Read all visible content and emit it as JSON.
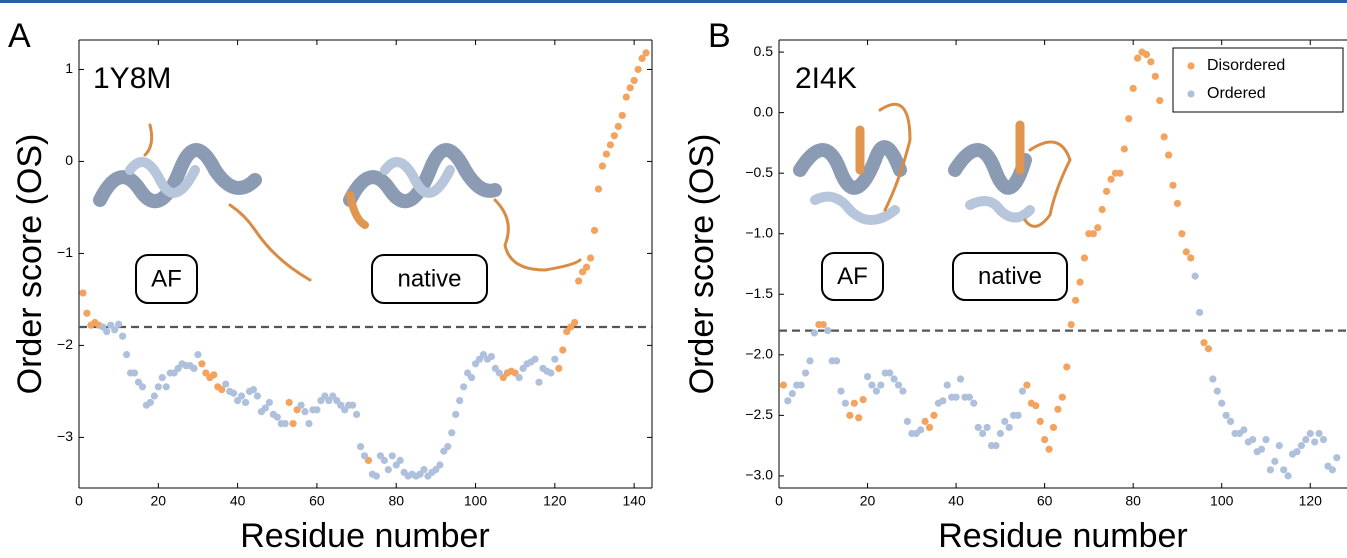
{
  "chart_data": [
    {
      "type": "scatter",
      "panel_label": "A",
      "title": "1Y8M",
      "xlabel": "Residue number",
      "ylabel": "Order score (OS)",
      "annotations": [
        "AF",
        "native"
      ],
      "threshold": -1.8,
      "xlim": [
        0,
        144.5
      ],
      "ylim": [
        -3.55,
        1.32
      ],
      "xticks": [
        0,
        20,
        40,
        60,
        80,
        100,
        120,
        140
      ],
      "yticks": [
        {
          "value": -3,
          "label": "−3"
        },
        {
          "value": -2,
          "label": "−2"
        },
        {
          "value": -1,
          "label": "−1"
        },
        0,
        1
      ],
      "series": [
        {
          "color": "#f4a35e",
          "x": [
            1,
            2,
            3,
            4,
            5,
            31,
            32,
            33,
            34,
            35,
            36,
            53,
            54,
            55,
            73,
            107,
            108,
            109,
            110,
            121,
            122,
            123,
            124,
            125,
            126,
            127,
            128,
            129,
            130,
            131,
            132,
            133,
            134,
            135,
            136,
            137,
            138,
            139,
            140,
            141,
            142,
            143
          ],
          "values": [
            -1.43,
            -1.65,
            -1.78,
            -1.75,
            -1.78,
            -2.2,
            -2.3,
            -2.35,
            -2.32,
            -2.45,
            -2.48,
            -2.62,
            -2.85,
            -2.7,
            -3.25,
            -2.35,
            -2.3,
            -2.28,
            -2.3,
            -2.25,
            -2.05,
            -1.85,
            -1.8,
            -1.75,
            -1.3,
            -1.2,
            -1.15,
            -1.05,
            -0.75,
            -0.3,
            -0.05,
            0.08,
            0.18,
            0.28,
            0.38,
            0.5,
            0.7,
            0.8,
            0.88,
            1.0,
            1.12,
            1.18
          ]
        },
        {
          "color": "#aec0dc",
          "x": [
            6,
            7,
            8,
            9,
            10,
            11,
            12,
            13,
            14,
            15,
            16,
            17,
            18,
            19,
            20,
            21,
            22,
            23,
            24,
            25,
            26,
            27,
            28,
            29,
            30,
            37,
            38,
            39,
            40,
            41,
            42,
            43,
            44,
            45,
            46,
            47,
            48,
            49,
            50,
            51,
            52,
            56,
            57,
            58,
            59,
            60,
            61,
            62,
            63,
            64,
            65,
            66,
            67,
            68,
            69,
            70,
            71,
            72,
            74,
            75,
            76,
            77,
            78,
            79,
            80,
            81,
            82,
            83,
            84,
            85,
            86,
            87,
            88,
            89,
            90,
            91,
            92,
            93,
            94,
            95,
            96,
            97,
            98,
            99,
            100,
            101,
            102,
            103,
            104,
            105,
            106,
            111,
            112,
            113,
            114,
            115,
            116,
            117,
            118,
            119,
            120
          ],
          "values": [
            -1.8,
            -1.85,
            -1.78,
            -1.83,
            -1.77,
            -1.9,
            -2.1,
            -2.3,
            -2.3,
            -2.4,
            -2.45,
            -2.65,
            -2.62,
            -2.55,
            -2.45,
            -2.35,
            -2.45,
            -2.3,
            -2.3,
            -2.25,
            -2.2,
            -2.22,
            -2.22,
            -2.25,
            -2.1,
            -2.42,
            -2.5,
            -2.52,
            -2.6,
            -2.55,
            -2.62,
            -2.5,
            -2.48,
            -2.55,
            -2.72,
            -2.68,
            -2.62,
            -2.75,
            -2.78,
            -2.85,
            -2.85,
            -2.65,
            -2.72,
            -2.85,
            -2.7,
            -2.7,
            -2.6,
            -2.55,
            -2.6,
            -2.55,
            -2.6,
            -2.65,
            -2.7,
            -2.65,
            -2.65,
            -2.75,
            -3.1,
            -3.2,
            -3.4,
            -3.42,
            -3.2,
            -3.25,
            -3.35,
            -3.2,
            -3.3,
            -3.25,
            -3.38,
            -3.42,
            -3.4,
            -3.42,
            -3.4,
            -3.35,
            -3.42,
            -3.38,
            -3.35,
            -3.3,
            -3.15,
            -3.1,
            -2.95,
            -2.75,
            -2.6,
            -2.45,
            -2.3,
            -2.35,
            -2.2,
            -2.15,
            -2.1,
            -2.15,
            -2.12,
            -2.25,
            -2.3,
            -2.35,
            -2.25,
            -2.2,
            -2.18,
            -2.15,
            -2.4,
            -2.25,
            -2.28,
            -2.3,
            -2.15
          ]
        }
      ]
    },
    {
      "type": "scatter",
      "panel_label": "B",
      "title": "2I4K",
      "xlabel": "Residue number",
      "ylabel": "Order score (OS)",
      "annotations": [
        "AF",
        "native"
      ],
      "threshold": -1.8,
      "legend": "upper right",
      "xlim": [
        0,
        128.3
      ],
      "ylim": [
        -3.1,
        0.6
      ],
      "xticks": [
        0,
        20,
        40,
        60,
        80,
        100,
        120
      ],
      "yticks": [
        {
          "value": -3.0,
          "label": "−3.0"
        },
        {
          "value": -2.5,
          "label": "−2.5"
        },
        {
          "value": -2.0,
          "label": "−2.0"
        },
        {
          "value": -1.5,
          "label": "−1.5"
        },
        {
          "value": -1.0,
          "label": "−1.0"
        },
        {
          "value": -0.5,
          "label": "−0.5"
        },
        {
          "value": 0,
          "label": "0.0"
        },
        0.5
      ],
      "series": [
        {
          "name": "Disordered",
          "color": "#f4a35e",
          "x": [
            1,
            9,
            10,
            16,
            17,
            18,
            19,
            33,
            34,
            35,
            56,
            57,
            58,
            59,
            60,
            61,
            62,
            63,
            64,
            65,
            66,
            67,
            68,
            69,
            70,
            71,
            72,
            73,
            74,
            75,
            76,
            77,
            78,
            79,
            80,
            81,
            82,
            83,
            84,
            85,
            86,
            87,
            88,
            89,
            90,
            91,
            92,
            93,
            96,
            97
          ],
          "values": [
            -2.25,
            -1.75,
            -1.75,
            -2.5,
            -2.4,
            -2.52,
            -2.37,
            -2.55,
            -2.6,
            -2.5,
            -2.25,
            -2.4,
            -2.42,
            -2.55,
            -2.7,
            -2.78,
            -2.6,
            -2.45,
            -2.35,
            -2.1,
            -1.75,
            -1.55,
            -1.4,
            -1.2,
            -1.0,
            -1.0,
            -0.95,
            -0.8,
            -0.65,
            -0.55,
            -0.5,
            -0.5,
            -0.3,
            -0.05,
            0.2,
            0.45,
            0.5,
            0.48,
            0.42,
            0.3,
            0.1,
            -0.2,
            -0.35,
            -0.6,
            -0.75,
            -1.0,
            -1.15,
            -1.2,
            -1.9,
            -1.95
          ]
        },
        {
          "name": "Ordered",
          "color": "#aec0dc",
          "x": [
            2,
            3,
            4,
            5,
            6,
            7,
            8,
            11,
            12,
            13,
            14,
            15,
            20,
            21,
            22,
            23,
            24,
            25,
            26,
            27,
            28,
            29,
            30,
            31,
            32,
            36,
            37,
            38,
            39,
            40,
            41,
            42,
            43,
            44,
            45,
            46,
            47,
            48,
            49,
            50,
            51,
            52,
            53,
            54,
            55,
            94,
            95,
            98,
            99,
            100,
            101,
            102,
            103,
            104,
            105,
            106,
            107,
            108,
            109,
            110,
            111,
            112,
            113,
            114,
            115,
            116,
            117,
            118,
            119,
            120,
            121,
            122,
            123,
            124,
            125,
            126
          ],
          "values": [
            -2.38,
            -2.32,
            -2.25,
            -2.25,
            -2.15,
            -2.05,
            -1.82,
            -1.8,
            -2.05,
            -2.05,
            -2.3,
            -2.4,
            -2.18,
            -2.25,
            -2.3,
            -2.25,
            -2.15,
            -2.15,
            -2.2,
            -2.25,
            -2.3,
            -2.55,
            -2.65,
            -2.65,
            -2.62,
            -2.4,
            -2.38,
            -2.25,
            -2.35,
            -2.35,
            -2.2,
            -2.35,
            -2.35,
            -2.4,
            -2.6,
            -2.65,
            -2.6,
            -2.75,
            -2.75,
            -2.65,
            -2.55,
            -2.6,
            -2.5,
            -2.5,
            -2.3,
            -1.35,
            -1.65,
            -2.2,
            -2.3,
            -2.4,
            -2.5,
            -2.55,
            -2.65,
            -2.65,
            -2.62,
            -2.72,
            -2.7,
            -2.8,
            -2.78,
            -2.7,
            -2.95,
            -2.88,
            -2.75,
            -2.95,
            -3.0,
            -2.82,
            -2.8,
            -2.75,
            -2.7,
            -2.65,
            -2.72,
            -2.65,
            -2.7,
            -2.92,
            -2.95,
            -2.85
          ]
        }
      ]
    }
  ]
}
